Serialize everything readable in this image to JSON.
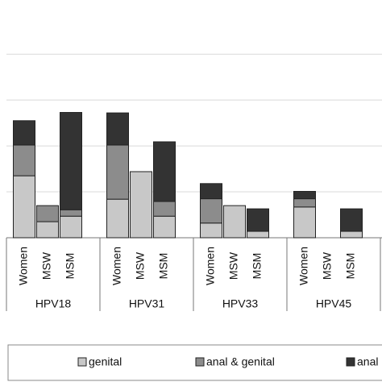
{
  "chart_data": {
    "type": "stacked-bar",
    "groups": [
      "HPV18",
      "HPV31",
      "HPV33",
      "HPV45"
    ],
    "subcategories": [
      "Women",
      "MSW",
      "MSM"
    ],
    "series": [
      {
        "name": "genital",
        "color": "#c8c8c8",
        "values": [
          1.35,
          0.35,
          0.47,
          0.84,
          1.44,
          0.47,
          0.32,
          0.7,
          0.14,
          0.67,
          0,
          0.14
        ]
      },
      {
        "name": "anal & genital",
        "color": "#8c8c8c",
        "values": [
          0.67,
          0.35,
          0.14,
          1.18,
          0,
          0.32,
          0.53,
          0,
          0,
          0.18,
          0,
          0
        ]
      },
      {
        "name": "anal",
        "color": "#333333",
        "values": [
          0.53,
          0,
          2.12,
          0.7,
          0,
          1.3,
          0.33,
          0,
          0.49,
          0.16,
          0,
          0.49
        ]
      }
    ],
    "ylim": [
      0,
      5.18
    ],
    "gridlines": [
      0,
      1,
      2,
      3,
      4
    ],
    "grid": true
  }
}
